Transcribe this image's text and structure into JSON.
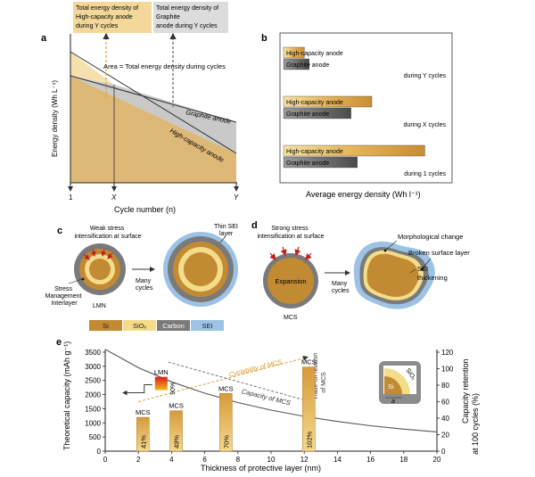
{
  "panel_a": {
    "label": "a",
    "callout_high_capacity": [
      "Total energy density of",
      "High-capacity anode",
      "during Y cycles"
    ],
    "callout_graphite": [
      "Total energy density of",
      "Graphite",
      "anode during Y cycles"
    ],
    "area_note": "Area = Total energy density during cycles",
    "graphite_line_label": "Graphite anode",
    "high_capacity_line_label": "High-capacity anode",
    "ylabel": "Energy density (Wh L⁻¹)",
    "xlabel": "Cycle number (n)",
    "ticks": [
      "1",
      "X",
      "Y"
    ]
  },
  "panel_b": {
    "label": "b",
    "xlabel": "Average energy density (Wh l⁻¹)",
    "colors": {
      "high_capacity": "#e4b65a",
      "graphite": "#6b6b6b"
    },
    "chart_data": {
      "type": "bar",
      "groups": [
        {
          "label": "during Y cycles",
          "bars": [
            {
              "name": "High-capacity anode",
              "value": 0.13
            },
            {
              "name": "Graphite anode",
              "value": 0.16
            }
          ]
        },
        {
          "label": "during X cycles",
          "bars": [
            {
              "name": "High-capacity anode",
              "value": 0.55
            },
            {
              "name": "Graphite anode",
              "value": 0.42
            }
          ]
        },
        {
          "label": "during 1 cycles",
          "bars": [
            {
              "name": "High-capacity anode",
              "value": 0.88
            },
            {
              "name": "Graphite anode",
              "value": 0.46
            }
          ]
        }
      ]
    }
  },
  "panel_c": {
    "label": "c",
    "stress_note": [
      "Weak stress",
      "intensification at surface"
    ],
    "thin_sei_note": [
      "Thin SEI",
      "layer"
    ],
    "interlayer_note": [
      "Stress",
      "Management",
      "Interlayer"
    ],
    "particle_label": "LMN",
    "arrow_label": [
      "Many",
      "cycles"
    ]
  },
  "panel_d": {
    "label": "d",
    "stress_note": [
      "Strong stress",
      "intensification at surface"
    ],
    "core_label": "Expansion",
    "particle_label": "MCS",
    "arrow_label": [
      "Many",
      "cycles"
    ],
    "morph_note": "Morphological change",
    "broken_note": [
      "Broken surface layer"
    ],
    "sei_note": [
      "SEI",
      "thickening"
    ]
  },
  "legend": {
    "items": [
      {
        "label": "Si",
        "color": "#c28a33"
      },
      {
        "label": "SiOx",
        "color": "#f3dc8a"
      },
      {
        "label": "Carbon",
        "color": "#7a7a7a"
      },
      {
        "label": "SEI",
        "color": "#9cc3e6"
      }
    ]
  },
  "panel_e": {
    "label": "e",
    "ylabel": "Theoretical capacity (mAh g⁻¹)",
    "y2label": [
      "Capacity retention",
      "at 100 cycles (%)"
    ],
    "xlabel": "Thickness of protective layer (nm)",
    "xticks": [
      "0",
      "2",
      "4",
      "6",
      "8",
      "10",
      "12",
      "14",
      "16",
      "18",
      "20"
    ],
    "yticks": [
      "0",
      "500",
      "1000",
      "1500",
      "2000",
      "2500",
      "3000",
      "3500"
    ],
    "y2ticks": [
      "0",
      "20",
      "40",
      "60",
      "80",
      "100",
      "120"
    ],
    "capacity_curve_label": "Capacity of MCS",
    "cyclability_label": "Cyclability of MCS",
    "tradeoff_label": [
      "Trade-off relation",
      "of MCS"
    ],
    "inset": {
      "si": "Si",
      "siox": "SiOx",
      "a": "a"
    },
    "chart_data": {
      "type": "bar",
      "xlim": [
        0,
        20
      ],
      "ylim": [
        0,
        3500
      ],
      "y2lim": [
        0,
        120
      ],
      "capacity_curve": {
        "x": [
          0,
          2,
          4,
          6,
          8,
          10,
          12,
          14,
          16,
          18,
          20
        ],
        "y": [
          3600,
          2950,
          2450,
          2050,
          1720,
          1450,
          1230,
          1050,
          900,
          780,
          680
        ]
      },
      "bars": [
        {
          "label": "MCS",
          "x": 1.9,
          "retention": 41,
          "value_label": "41%"
        },
        {
          "label": "MCS",
          "x": 3.9,
          "retention": 49,
          "value_label": "49%"
        },
        {
          "label": "MCS",
          "x": 6.9,
          "retention": 70,
          "value_label": "70%"
        },
        {
          "label": "MCS",
          "x": 11.9,
          "retention": 102,
          "value_label": "102%"
        }
      ],
      "lmn": {
        "label": "LMN",
        "x": 3,
        "retention": 90,
        "value_label": "90%"
      }
    }
  }
}
